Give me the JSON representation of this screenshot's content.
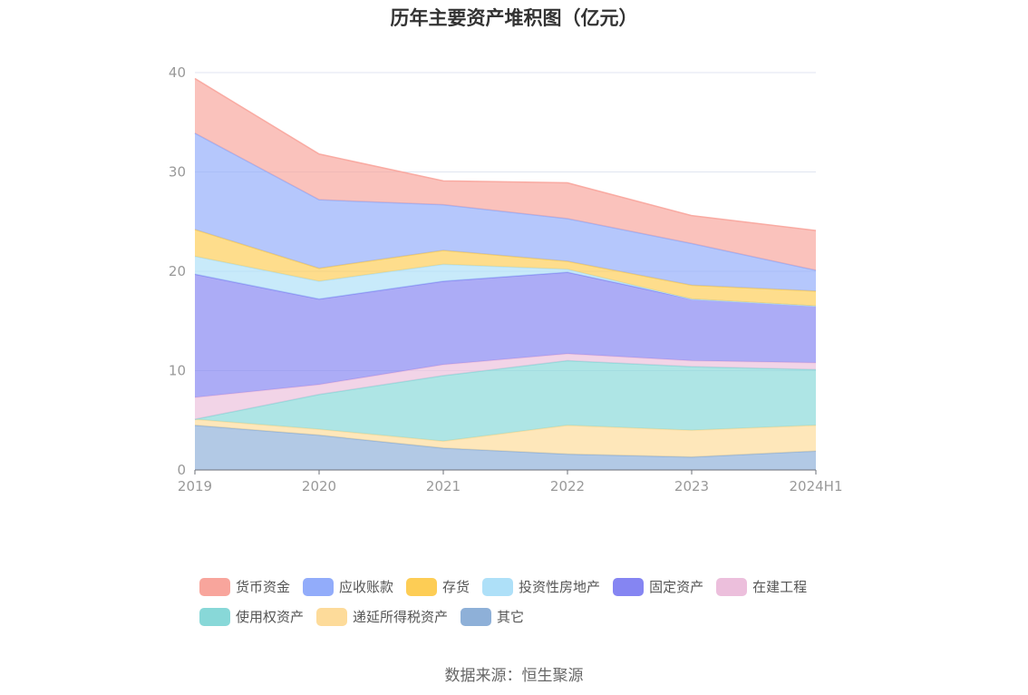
{
  "chart_data": {
    "type": "area",
    "stacked": true,
    "title": "历年主要资产堆积图（亿元）",
    "source": "数据来源：恒生聚源",
    "xlabel": "",
    "ylabel": "",
    "ylim": [
      0,
      40
    ],
    "yticks": [
      "0",
      "10",
      "20",
      "30",
      "40"
    ],
    "categories": [
      "2019",
      "2020",
      "2021",
      "2022",
      "2023",
      "2024H1"
    ],
    "grid": true,
    "legend_position": "bottom",
    "series": [
      {
        "name": "其它",
        "color": "#8eb0d8",
        "values": [
          4.5,
          3.5,
          2.2,
          1.6,
          1.3,
          1.9
        ]
      },
      {
        "name": "递延所得税资产",
        "color": "#fddb9a",
        "values": [
          0.6,
          0.6,
          0.7,
          2.9,
          2.7,
          2.6
        ]
      },
      {
        "name": "使用权资产",
        "color": "#88d8d8",
        "values": [
          0.0,
          3.5,
          6.6,
          6.5,
          6.4,
          5.6
        ]
      },
      {
        "name": "在建工程",
        "color": "#ecbfdc",
        "values": [
          2.2,
          1.0,
          1.1,
          0.7,
          0.6,
          0.7
        ]
      },
      {
        "name": "固定资产",
        "color": "#8585f2",
        "values": [
          12.4,
          8.6,
          8.4,
          8.2,
          6.2,
          5.7
        ]
      },
      {
        "name": "投资性房地产",
        "color": "#aee0f8",
        "values": [
          1.8,
          1.8,
          1.7,
          0.3,
          0.0,
          0.0
        ]
      },
      {
        "name": "存货",
        "color": "#fdcd55",
        "values": [
          2.7,
          1.3,
          1.4,
          0.8,
          1.4,
          1.5
        ]
      },
      {
        "name": "应收账款",
        "color": "#92acfa",
        "values": [
          9.7,
          6.9,
          4.6,
          4.3,
          4.2,
          2.1
        ]
      },
      {
        "name": "货币资金",
        "color": "#f8a59c",
        "values": [
          5.5,
          4.6,
          2.4,
          3.6,
          2.8,
          4.0
        ]
      }
    ]
  },
  "legend": {
    "row1": [
      {
        "label": "货币资金",
        "color": "#f8a59c"
      },
      {
        "label": "应收账款",
        "color": "#92acfa"
      },
      {
        "label": "存货",
        "color": "#fdcd55"
      },
      {
        "label": "投资性房地产",
        "color": "#aee0f8"
      },
      {
        "label": "固定资产",
        "color": "#8585f2"
      },
      {
        "label": "在建工程",
        "color": "#ecbfdc"
      }
    ],
    "row2": [
      {
        "label": "使用权资产",
        "color": "#88d8d8"
      },
      {
        "label": "递延所得税资产",
        "color": "#fddb9a"
      },
      {
        "label": "其它",
        "color": "#8eb0d8"
      }
    ]
  }
}
